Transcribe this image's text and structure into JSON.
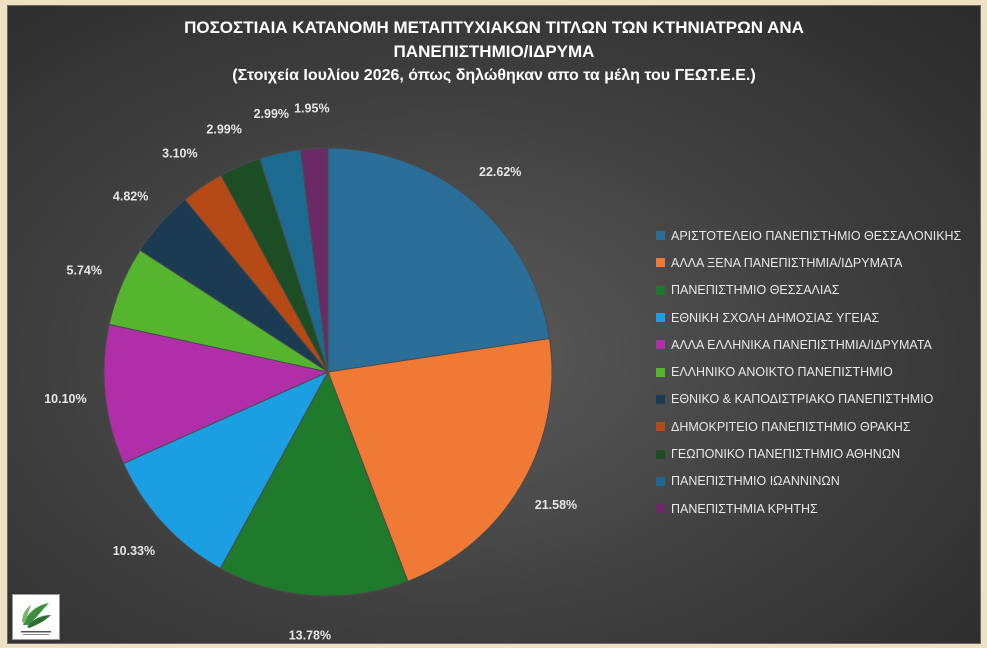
{
  "title": {
    "line1": "ΠΟΣΟΣΤΙΑΙΑ ΚΑΤΑΝΟΜΗ ΜΕΤΑΠΤΥΧΙΑΚΩΝ ΤΙΤΛΩΝ ΤΩΝ ΚΤΗΝΙΑΤΡΩΝ ΑΝΑ",
    "line2": "ΠΑΝΕΠΙΣΤΗΜΙΟ/ΙΔΡΥΜΑ",
    "line3": "(Στοιχεία Ιουλίου 2026, όπως δηλώθηκαν απο τα μέλη του ΓΕΩΤ.Ε.Ε.)"
  },
  "logo": {
    "icon": "geotee-logo-icon",
    "text": "ΓΕΩΤΕΧΝΙΚΟ ΕΠΙΜΕΛΗΤΗΡΙΟ ΕΛΛΑΔΑΣ"
  },
  "chart_data": {
    "type": "pie",
    "legend_position": "right",
    "slices": [
      {
        "label": "ΑΡΙΣΤΟΤΕΛΕΙΟ ΠΑΝΕΠΙΣΤΗΜΙΟ ΘΕΣΣΑΛΟΝΙΚΗΣ",
        "value": 22.62,
        "value_label": "22.62%",
        "color": "#2a6f97"
      },
      {
        "label": "ΑΛΛΑ ΞΕΝΑ ΠΑΝΕΠΙΣΤΗΜΙΑ/ΙΔΡΥΜΑΤΑ",
        "value": 21.58,
        "value_label": "21.58%",
        "color": "#f07a35"
      },
      {
        "label": "ΠΑΝΕΠΙΣΤΗΜΙΟ ΘΕΣΣΑΛΙΑΣ",
        "value": 13.78,
        "value_label": "13.78%",
        "color": "#1f7a2c"
      },
      {
        "label": "ΕΘΝΙΚΗ ΣΧΟΛΗ ΔΗΜΟΣΙΑΣ ΥΓΕΙΑΣ",
        "value": 10.33,
        "value_label": "10.33%",
        "color": "#1b9ee2"
      },
      {
        "label": "ΑΛΛΑ ΕΛΛΗΝΙΚΑ ΠΑΝΕΠΙΣΤΗΜΙΑ/ΙΔΡΥΜΑΤΑ",
        "value": 10.1,
        "value_label": "10.10%",
        "color": "#b02fa8"
      },
      {
        "label": "ΕΛΛΗΝΙΚΟ ΑΝΟΙΚΤΟ ΠΑΝΕΠΙΣΤΗΜΙΟ",
        "value": 5.74,
        "value_label": "5.74%",
        "color": "#55b52f"
      },
      {
        "label": "ΕΘΝΙΚΟ & ΚΑΠΟΔΙΣΤΡΙΑΚΟ ΠΑΝΕΠΙΣΤΗΜΙΟ",
        "value": 4.82,
        "value_label": "4.82%",
        "color": "#1a3b52"
      },
      {
        "label": "ΔΗΜΟΚΡΙΤΕΙΟ ΠΑΝΕΠΙΣΤΗΜΙΟ ΘΡΑΚΗΣ",
        "value": 3.1,
        "value_label": "3.10%",
        "color": "#b54a17"
      },
      {
        "label": "ΓΕΩΠΟΝΙΚΟ ΠΑΝΕΠΙΣΤΗΜΙΟ ΑΘΗΝΩΝ",
        "value": 2.99,
        "value_label": "2.99%",
        "color": "#1d4d22"
      },
      {
        "label": "ΠΑΝΕΠΙΣΤΗΜΙΟ ΙΩΑΝΝΙΝΩΝ",
        "value": 2.99,
        "value_label": "2.99%",
        "color": "#1c6a8f"
      },
      {
        "label": "ΠΑΝΕΠΙΣΤΗΜΙΑ ΚΡΗΤΗΣ",
        "value": 1.95,
        "value_label": "1.95%",
        "color": "#6b2a66"
      }
    ]
  }
}
